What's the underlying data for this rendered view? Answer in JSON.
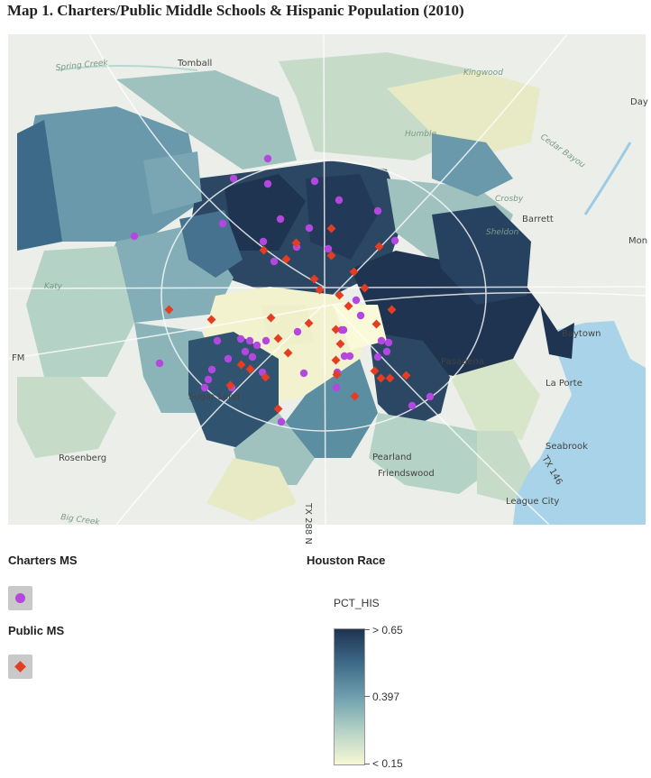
{
  "title": "Map 1. Charters/Public Middle Schools & Hispanic Population (2010)",
  "map": {
    "place_labels": [
      "Spring Creek",
      "Tomball",
      "Day",
      "Cedar Bayou",
      "Barrett",
      "Mon",
      "Baytown",
      "Pasadena",
      "La Porte",
      "Seabrook",
      "Sugar Land",
      "Rosenberg",
      "Pearland",
      "Friendswood",
      "League City",
      "Big Creek",
      "FM",
      "Kingwood",
      "Humble",
      "Crosby",
      "Sheldon",
      "Katy",
      "TX 288 N",
      "TX 146"
    ]
  },
  "legend": {
    "charters_label": "Charters MS",
    "public_label": "Public MS",
    "race_title": "Houston Race",
    "field_name": "PCT_HIS",
    "ramp_labels": [
      "> 0.65",
      "0.397",
      "< 0.15"
    ]
  },
  "colors": {
    "charter_marker": "#b347e0",
    "public_marker": "#e53d22",
    "ramp_high": "#1f3450",
    "ramp_mid": "#6f9fae",
    "ramp_low": "#f8f7d4"
  }
}
